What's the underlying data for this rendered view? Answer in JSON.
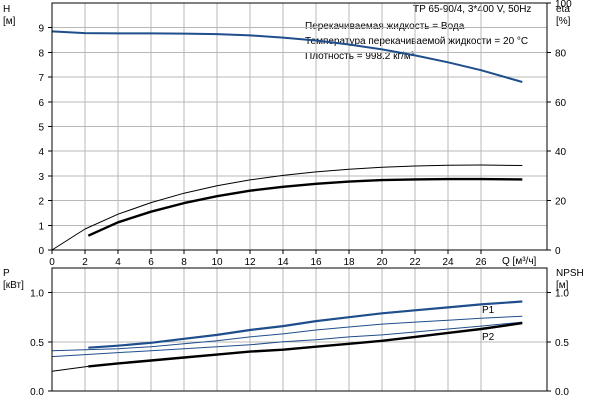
{
  "header": {
    "pump_title": "TP 65-90/4, 3*400 V, 50Hz",
    "info_lines": [
      "Перекачиваемая жидкость = Вода",
      "Температура перекачиваемой жидкости = 20 °C",
      "Плотность = 998.2 кг/м³"
    ]
  },
  "colors": {
    "series_blue": "#1f4e8c",
    "series_black": "#000000",
    "grid": "#b8b8b8"
  },
  "chart_data": [
    {
      "type": "line",
      "name": "head-efficiency",
      "xlabel": "Q [м³/ч]",
      "ylabel_left": "H\n[м]",
      "ylabel_right": "eta\n[%]",
      "xlim": [
        0,
        30
      ],
      "ylim_left": [
        0,
        10
      ],
      "ylim_right": [
        0,
        100
      ],
      "x_ticks": [
        0,
        2,
        4,
        6,
        8,
        10,
        12,
        14,
        16,
        18,
        20,
        22,
        24,
        26
      ],
      "y_ticks_left": [
        0,
        1,
        2,
        3,
        4,
        5,
        6,
        7,
        8,
        9
      ],
      "y_ticks_right": [
        0,
        20,
        40,
        60,
        80,
        100
      ],
      "grid": true,
      "series": [
        {
          "axis": "left",
          "color": "#1f4e8c",
          "width": 2,
          "x": [
            0,
            2,
            4,
            6,
            8,
            10,
            12,
            14,
            16,
            18,
            20,
            22,
            24,
            26,
            28.5
          ],
          "y": [
            8.85,
            8.78,
            8.77,
            8.77,
            8.76,
            8.74,
            8.69,
            8.6,
            8.48,
            8.32,
            8.12,
            7.88,
            7.6,
            7.28,
            6.8
          ]
        },
        {
          "axis": "left",
          "color": "#000000",
          "width": 1,
          "x": [
            0,
            2,
            4,
            6,
            8,
            10,
            12,
            14,
            16,
            18,
            20,
            22,
            24,
            26,
            28.5
          ],
          "y": [
            0.0,
            0.85,
            1.45,
            1.92,
            2.3,
            2.6,
            2.84,
            3.02,
            3.16,
            3.27,
            3.35,
            3.4,
            3.43,
            3.44,
            3.42
          ]
        },
        {
          "axis": "left",
          "color": "#000000",
          "width": 2.4,
          "x": [
            2.2,
            4,
            6,
            8,
            10,
            12,
            14,
            16,
            18,
            20,
            22,
            24,
            26,
            28.5
          ],
          "y": [
            0.58,
            1.12,
            1.55,
            1.9,
            2.18,
            2.4,
            2.56,
            2.68,
            2.77,
            2.83,
            2.86,
            2.87,
            2.87,
            2.86
          ]
        }
      ]
    },
    {
      "type": "line",
      "name": "power-npsh",
      "xlim": [
        0,
        30
      ],
      "ylabel_left": "P\n[кВт]",
      "ylabel_right": "NPSH\n[м]",
      "ylim_left": [
        0,
        1.25
      ],
      "ylim_right": [
        0,
        1.25
      ],
      "y_ticks_left": [
        0.0,
        0.5,
        1.0
      ],
      "y_ticks_right": [
        0.0,
        0.5,
        1.0
      ],
      "grid": true,
      "series": [
        {
          "name": "P1",
          "axis": "left",
          "color": "#1f4e8c",
          "width": 2.2,
          "x": [
            2.2,
            4,
            6,
            8,
            10,
            12,
            14,
            16,
            18,
            20,
            22,
            24,
            26,
            28.5
          ],
          "y": [
            0.44,
            0.46,
            0.49,
            0.53,
            0.57,
            0.62,
            0.66,
            0.71,
            0.75,
            0.79,
            0.82,
            0.85,
            0.88,
            0.91
          ]
        },
        {
          "axis": "left",
          "color": "#1f4e8c",
          "width": 1,
          "x": [
            0,
            2,
            4,
            6,
            8,
            10,
            12,
            14,
            16,
            18,
            20,
            22,
            24,
            26,
            28.5
          ],
          "y": [
            0.41,
            0.42,
            0.43,
            0.45,
            0.48,
            0.51,
            0.55,
            0.58,
            0.62,
            0.65,
            0.68,
            0.7,
            0.72,
            0.74,
            0.76
          ]
        },
        {
          "axis": "left",
          "color": "#1f4e8c",
          "width": 1,
          "x": [
            0,
            2,
            4,
            6,
            8,
            10,
            12,
            14,
            16,
            18,
            20,
            22,
            24,
            26,
            28.5
          ],
          "y": [
            0.35,
            0.37,
            0.39,
            0.41,
            0.43,
            0.45,
            0.47,
            0.5,
            0.52,
            0.55,
            0.57,
            0.6,
            0.63,
            0.66,
            0.7
          ]
        },
        {
          "axis": "left",
          "color": "#000000",
          "width": 1,
          "x": [
            0,
            2.2
          ],
          "y": [
            0.2,
            0.25
          ]
        },
        {
          "name": "P2",
          "axis": "left",
          "color": "#000000",
          "width": 2.4,
          "x": [
            2.2,
            4,
            6,
            8,
            10,
            12,
            14,
            16,
            18,
            20,
            22,
            24,
            26,
            28.5
          ],
          "y": [
            0.25,
            0.28,
            0.31,
            0.34,
            0.37,
            0.4,
            0.42,
            0.45,
            0.48,
            0.51,
            0.55,
            0.59,
            0.63,
            0.69
          ]
        }
      ]
    }
  ]
}
